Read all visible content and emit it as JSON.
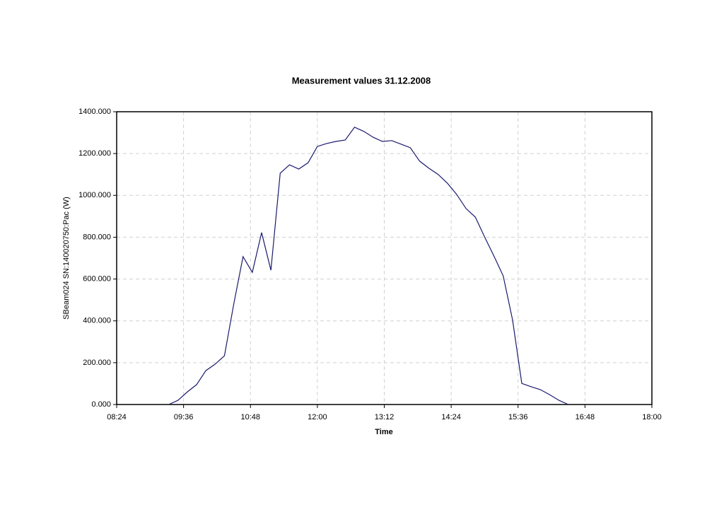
{
  "chart_data": {
    "type": "line",
    "title": "Measurement values 31.12.2008",
    "x_label": "Time",
    "y_label": "SBeam024 SN:140020750:Pac (W)",
    "x": [
      "09:20",
      "09:30",
      "09:40",
      "09:50",
      "10:00",
      "10:10",
      "10:20",
      "10:30",
      "10:40",
      "10:50",
      "11:00",
      "11:10",
      "11:20",
      "11:30",
      "11:40",
      "11:50",
      "12:00",
      "12:10",
      "12:20",
      "12:30",
      "12:40",
      "12:50",
      "13:00",
      "13:10",
      "13:20",
      "13:30",
      "13:40",
      "13:50",
      "14:00",
      "14:10",
      "14:20",
      "14:30",
      "14:40",
      "14:50",
      "15:00",
      "15:10",
      "15:20",
      "15:30",
      "15:40",
      "15:50",
      "16:00",
      "16:10",
      "16:20",
      "16:30"
    ],
    "series": [
      {
        "name": "SBeam024 SN:140020750:Pac (W)",
        "color": "#1a1a6e",
        "values": [
          0,
          20,
          60,
          95,
          162,
          193,
          233,
          480,
          707,
          632,
          822,
          642,
          1106,
          1146,
          1126,
          1156,
          1234,
          1248,
          1258,
          1265,
          1326,
          1306,
          1278,
          1258,
          1262,
          1245,
          1228,
          1164,
          1130,
          1100,
          1058,
          1004,
          937,
          896,
          801,
          710,
          615,
          406,
          101,
          85,
          71,
          47,
          20,
          0
        ]
      }
    ],
    "xlim": [
      "08:24",
      "18:00"
    ],
    "xticks": [
      "08:24",
      "09:36",
      "10:48",
      "12:00",
      "13:12",
      "14:24",
      "15:36",
      "16:48",
      "18:00"
    ],
    "ylim": [
      0,
      1400
    ],
    "yticks": [
      {
        "value": 0,
        "label": "0.000"
      },
      {
        "value": 200,
        "label": "200.000"
      },
      {
        "value": 400,
        "label": "400.000"
      },
      {
        "value": 600,
        "label": "600.000"
      },
      {
        "value": 800,
        "label": "800.000"
      },
      {
        "value": 1000,
        "label": "1000.000"
      },
      {
        "value": 1200,
        "label": "1200.000"
      },
      {
        "value": 1400,
        "label": "1400.000"
      }
    ],
    "grid": true
  }
}
